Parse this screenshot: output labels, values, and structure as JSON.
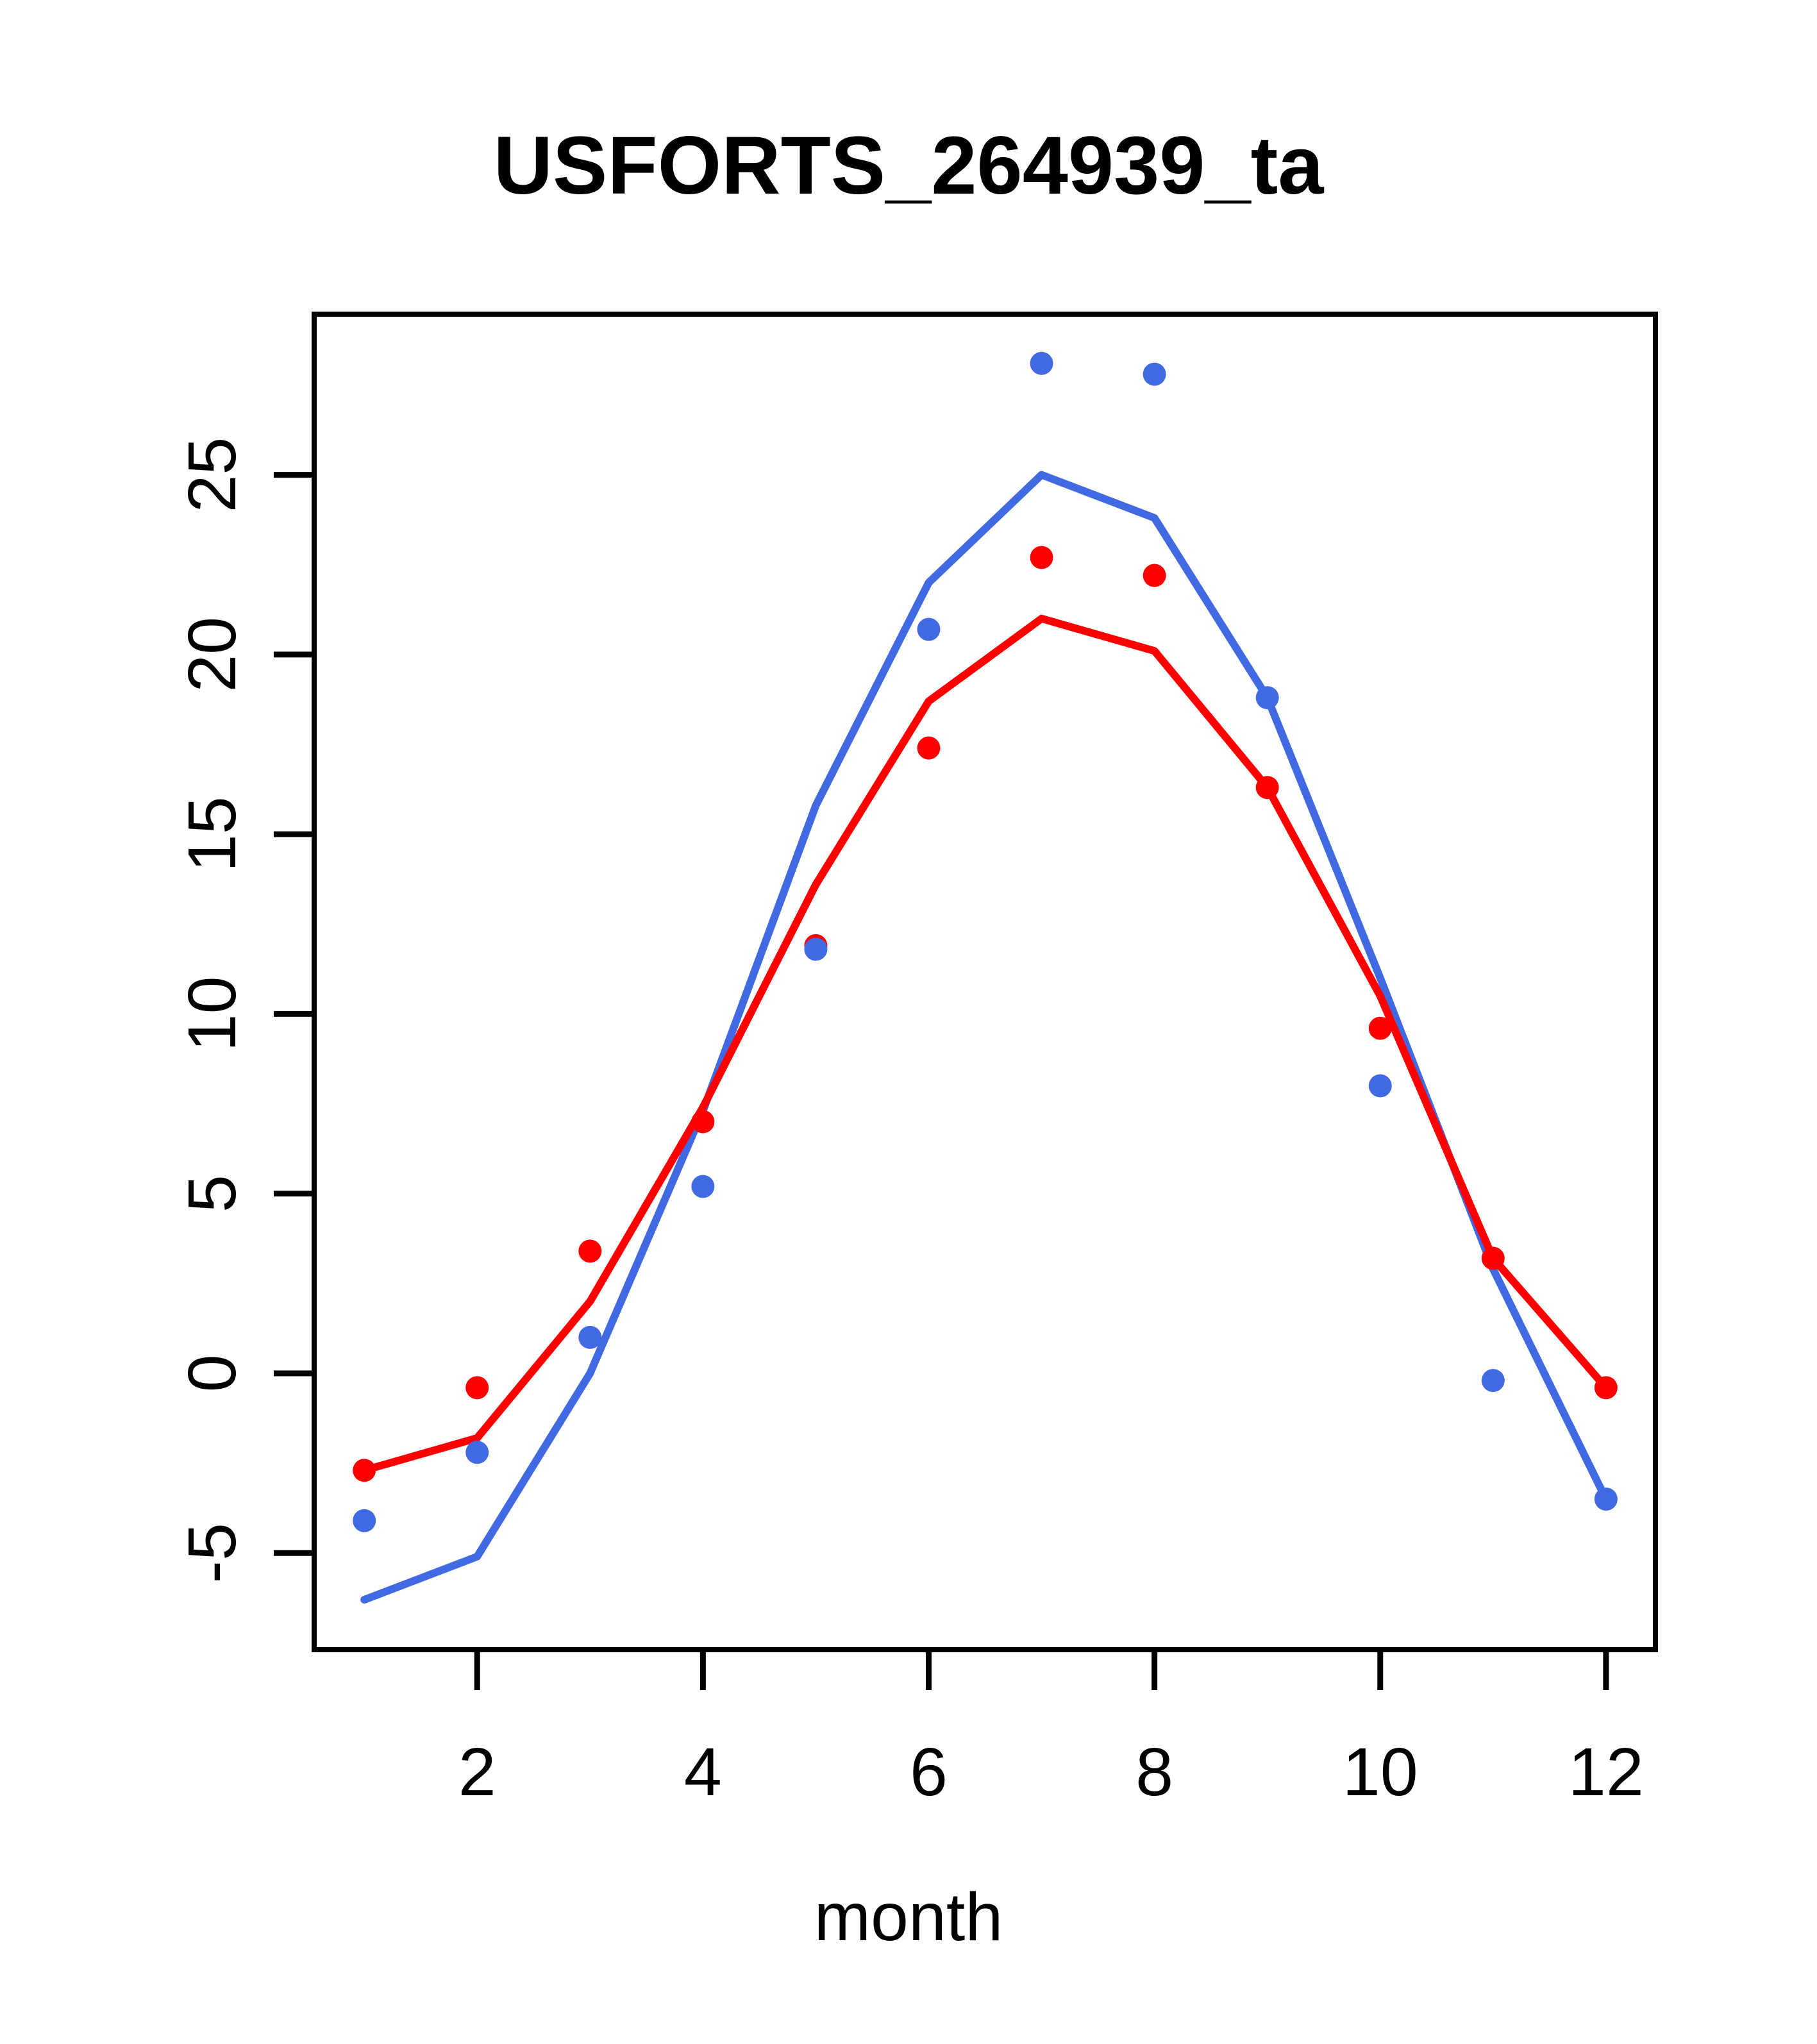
{
  "title": "USFORTS_264939_ta",
  "xlabel": "month",
  "colors": {
    "blue": "#4169E1",
    "red": "#FF0000",
    "axis": "#000000",
    "background": "#FFFFFF"
  },
  "chart_data": {
    "type": "line",
    "title": "USFORTS_264939_ta",
    "xlabel": "month",
    "ylabel": "",
    "x": [
      1,
      2,
      3,
      4,
      5,
      6,
      7,
      8,
      9,
      10,
      11,
      12
    ],
    "series": [
      {
        "name": "blue-line",
        "color": "#4169E1",
        "style": "line",
        "values": [
          -6.3,
          -5.1,
          0.0,
          7.3,
          15.8,
          22.0,
          25.0,
          23.8,
          18.8,
          11.0,
          2.9,
          -3.5
        ]
      },
      {
        "name": "red-line",
        "color": "#FF0000",
        "style": "line",
        "values": [
          -2.7,
          -1.8,
          2.0,
          7.4,
          13.6,
          18.7,
          21.0,
          20.1,
          16.3,
          10.5,
          3.2,
          -0.4
        ]
      },
      {
        "name": "red-points",
        "color": "#FF0000",
        "style": "points",
        "values": [
          -2.7,
          -0.4,
          3.4,
          7.0,
          11.9,
          17.4,
          22.7,
          22.2,
          16.3,
          9.6,
          3.2,
          -0.4
        ]
      },
      {
        "name": "blue-points",
        "color": "#4169E1",
        "style": "points",
        "values": [
          -4.1,
          -2.2,
          1.0,
          5.2,
          11.8,
          20.7,
          28.1,
          27.8,
          18.8,
          8.0,
          -0.2,
          -3.5
        ]
      }
    ],
    "xticks": [
      2,
      4,
      6,
      8,
      10,
      12
    ],
    "yticks": [
      -5,
      0,
      5,
      10,
      15,
      20,
      25
    ],
    "xlim": [
      0.556,
      12.438
    ],
    "ylim": [
      -7.69,
      29.47
    ],
    "grid": false,
    "legend": "none"
  }
}
